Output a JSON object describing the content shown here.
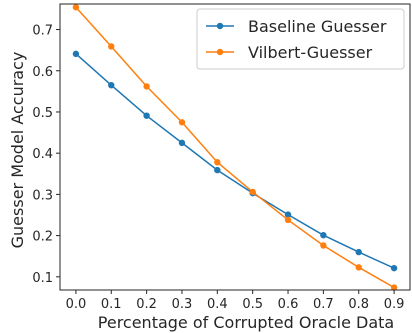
{
  "chart_data": {
    "type": "line",
    "xlabel": "Percentage of Corrupted Oracle Data",
    "ylabel": "Guesser Model Accuracy",
    "x": [
      0.0,
      0.1,
      0.2,
      0.3,
      0.4,
      0.5,
      0.6,
      0.7,
      0.8,
      0.9
    ],
    "x_ticks": [
      "0.0",
      "0.1",
      "0.2",
      "0.3",
      "0.4",
      "0.5",
      "0.6",
      "0.7",
      "0.8",
      "0.9"
    ],
    "y_ticks": [
      "0.1",
      "0.2",
      "0.3",
      "0.4",
      "0.5",
      "0.6",
      "0.7"
    ],
    "xlim": [
      -0.045,
      0.945
    ],
    "ylim": [
      0.068,
      0.762
    ],
    "grid": false,
    "legend_position": "top-right",
    "series": [
      {
        "name": "Baseline Guesser",
        "color": "#1f77b4",
        "values": [
          0.641,
          0.565,
          0.491,
          0.425,
          0.359,
          0.303,
          0.251,
          0.201,
          0.16,
          0.121
        ]
      },
      {
        "name": "Vilbert-Guesser",
        "color": "#ff7f0e",
        "values": [
          0.754,
          0.659,
          0.562,
          0.475,
          0.378,
          0.306,
          0.238,
          0.176,
          0.123,
          0.074
        ]
      }
    ]
  }
}
